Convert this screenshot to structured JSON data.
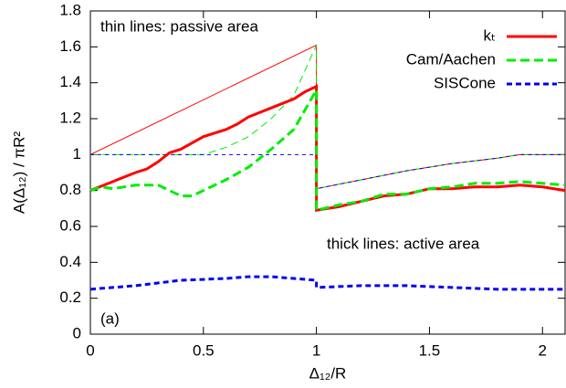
{
  "chart_data": {
    "type": "line",
    "xlabel": "Δ₁₂/R",
    "ylabel": "A(Δ₁₂) / πR²",
    "annotations": [
      "thin lines: passive area",
      "thick lines: active area",
      "(a)"
    ],
    "xlim": [
      0,
      2.1
    ],
    "xticks": [
      0,
      0.5,
      1,
      1.5,
      2
    ],
    "ylim": [
      0,
      1.8
    ],
    "yticks": [
      0,
      0.2,
      0.4,
      0.6,
      0.8,
      1,
      1.2,
      1.4,
      1.6,
      1.8
    ],
    "grid": false,
    "legend": "top-right",
    "series": [
      {
        "name": "kₜ",
        "color": "#ff0000",
        "width": 3,
        "dash": "solid",
        "x": [
          0,
          0.1,
          0.2,
          0.25,
          0.3,
          0.35,
          0.4,
          0.5,
          0.6,
          0.65,
          0.7,
          0.8,
          0.9,
          0.95,
          1,
          1,
          1.1,
          1.2,
          1.3,
          1.4,
          1.5,
          1.6,
          1.7,
          1.8,
          1.9,
          2.0,
          2.1
        ],
        "values": [
          0.8,
          0.85,
          0.9,
          0.92,
          0.96,
          1.01,
          1.03,
          1.1,
          1.14,
          1.17,
          1.21,
          1.26,
          1.31,
          1.35,
          1.38,
          0.69,
          0.71,
          0.74,
          0.77,
          0.78,
          0.81,
          0.81,
          0.82,
          0.82,
          0.83,
          0.82,
          0.8
        ]
      },
      {
        "name": "Cam/Aachen",
        "color": "#00ee00",
        "width": 3,
        "dash": "dashed",
        "x": [
          0,
          0.05,
          0.1,
          0.2,
          0.3,
          0.4,
          0.45,
          0.5,
          0.6,
          0.7,
          0.8,
          0.9,
          0.95,
          1,
          1,
          1.1,
          1.2,
          1.3,
          1.4,
          1.5,
          1.6,
          1.7,
          1.8,
          1.9,
          2.0,
          2.1
        ],
        "values": [
          0.8,
          0.82,
          0.81,
          0.83,
          0.83,
          0.77,
          0.77,
          0.8,
          0.86,
          0.93,
          1.03,
          1.14,
          1.25,
          1.36,
          0.69,
          0.72,
          0.74,
          0.78,
          0.78,
          0.81,
          0.82,
          0.84,
          0.84,
          0.85,
          0.84,
          0.83
        ]
      },
      {
        "name": "SISCone",
        "color": "#0000ee",
        "width": 3,
        "dash": "dotted",
        "x": [
          0,
          0.2,
          0.4,
          0.6,
          0.7,
          0.8,
          0.9,
          1,
          1,
          1.2,
          1.4,
          1.6,
          1.8,
          2.1
        ],
        "values": [
          0.25,
          0.27,
          0.3,
          0.31,
          0.32,
          0.32,
          0.31,
          0.3,
          0.26,
          0.27,
          0.27,
          0.26,
          0.25,
          0.25
        ]
      },
      {
        "color": "#ff0000",
        "width": 1,
        "dash": "solid",
        "x": [
          0,
          1,
          1,
          1.2,
          1.4,
          1.6,
          1.8,
          1.9,
          2.1
        ],
        "values": [
          1,
          1.61,
          0.81,
          0.86,
          0.91,
          0.95,
          0.98,
          1,
          1
        ]
      },
      {
        "color": "#00ee00",
        "width": 1,
        "dash": "dashed",
        "x": [
          0,
          0.5,
          0.6,
          0.7,
          0.8,
          0.9,
          1,
          1,
          1.2,
          1.4,
          1.6,
          1.8,
          1.9,
          2.1
        ],
        "values": [
          1,
          1,
          1.04,
          1.1,
          1.2,
          1.33,
          1.61,
          0.81,
          0.86,
          0.91,
          0.95,
          0.98,
          1,
          1
        ]
      },
      {
        "color": "#0000ee",
        "width": 1,
        "dash": "dotted",
        "x": [
          0,
          1,
          1,
          1.2,
          1.4,
          1.6,
          1.8,
          1.9,
          2.1
        ],
        "values": [
          1,
          1,
          0.81,
          0.86,
          0.91,
          0.95,
          0.98,
          1,
          1
        ]
      }
    ]
  }
}
